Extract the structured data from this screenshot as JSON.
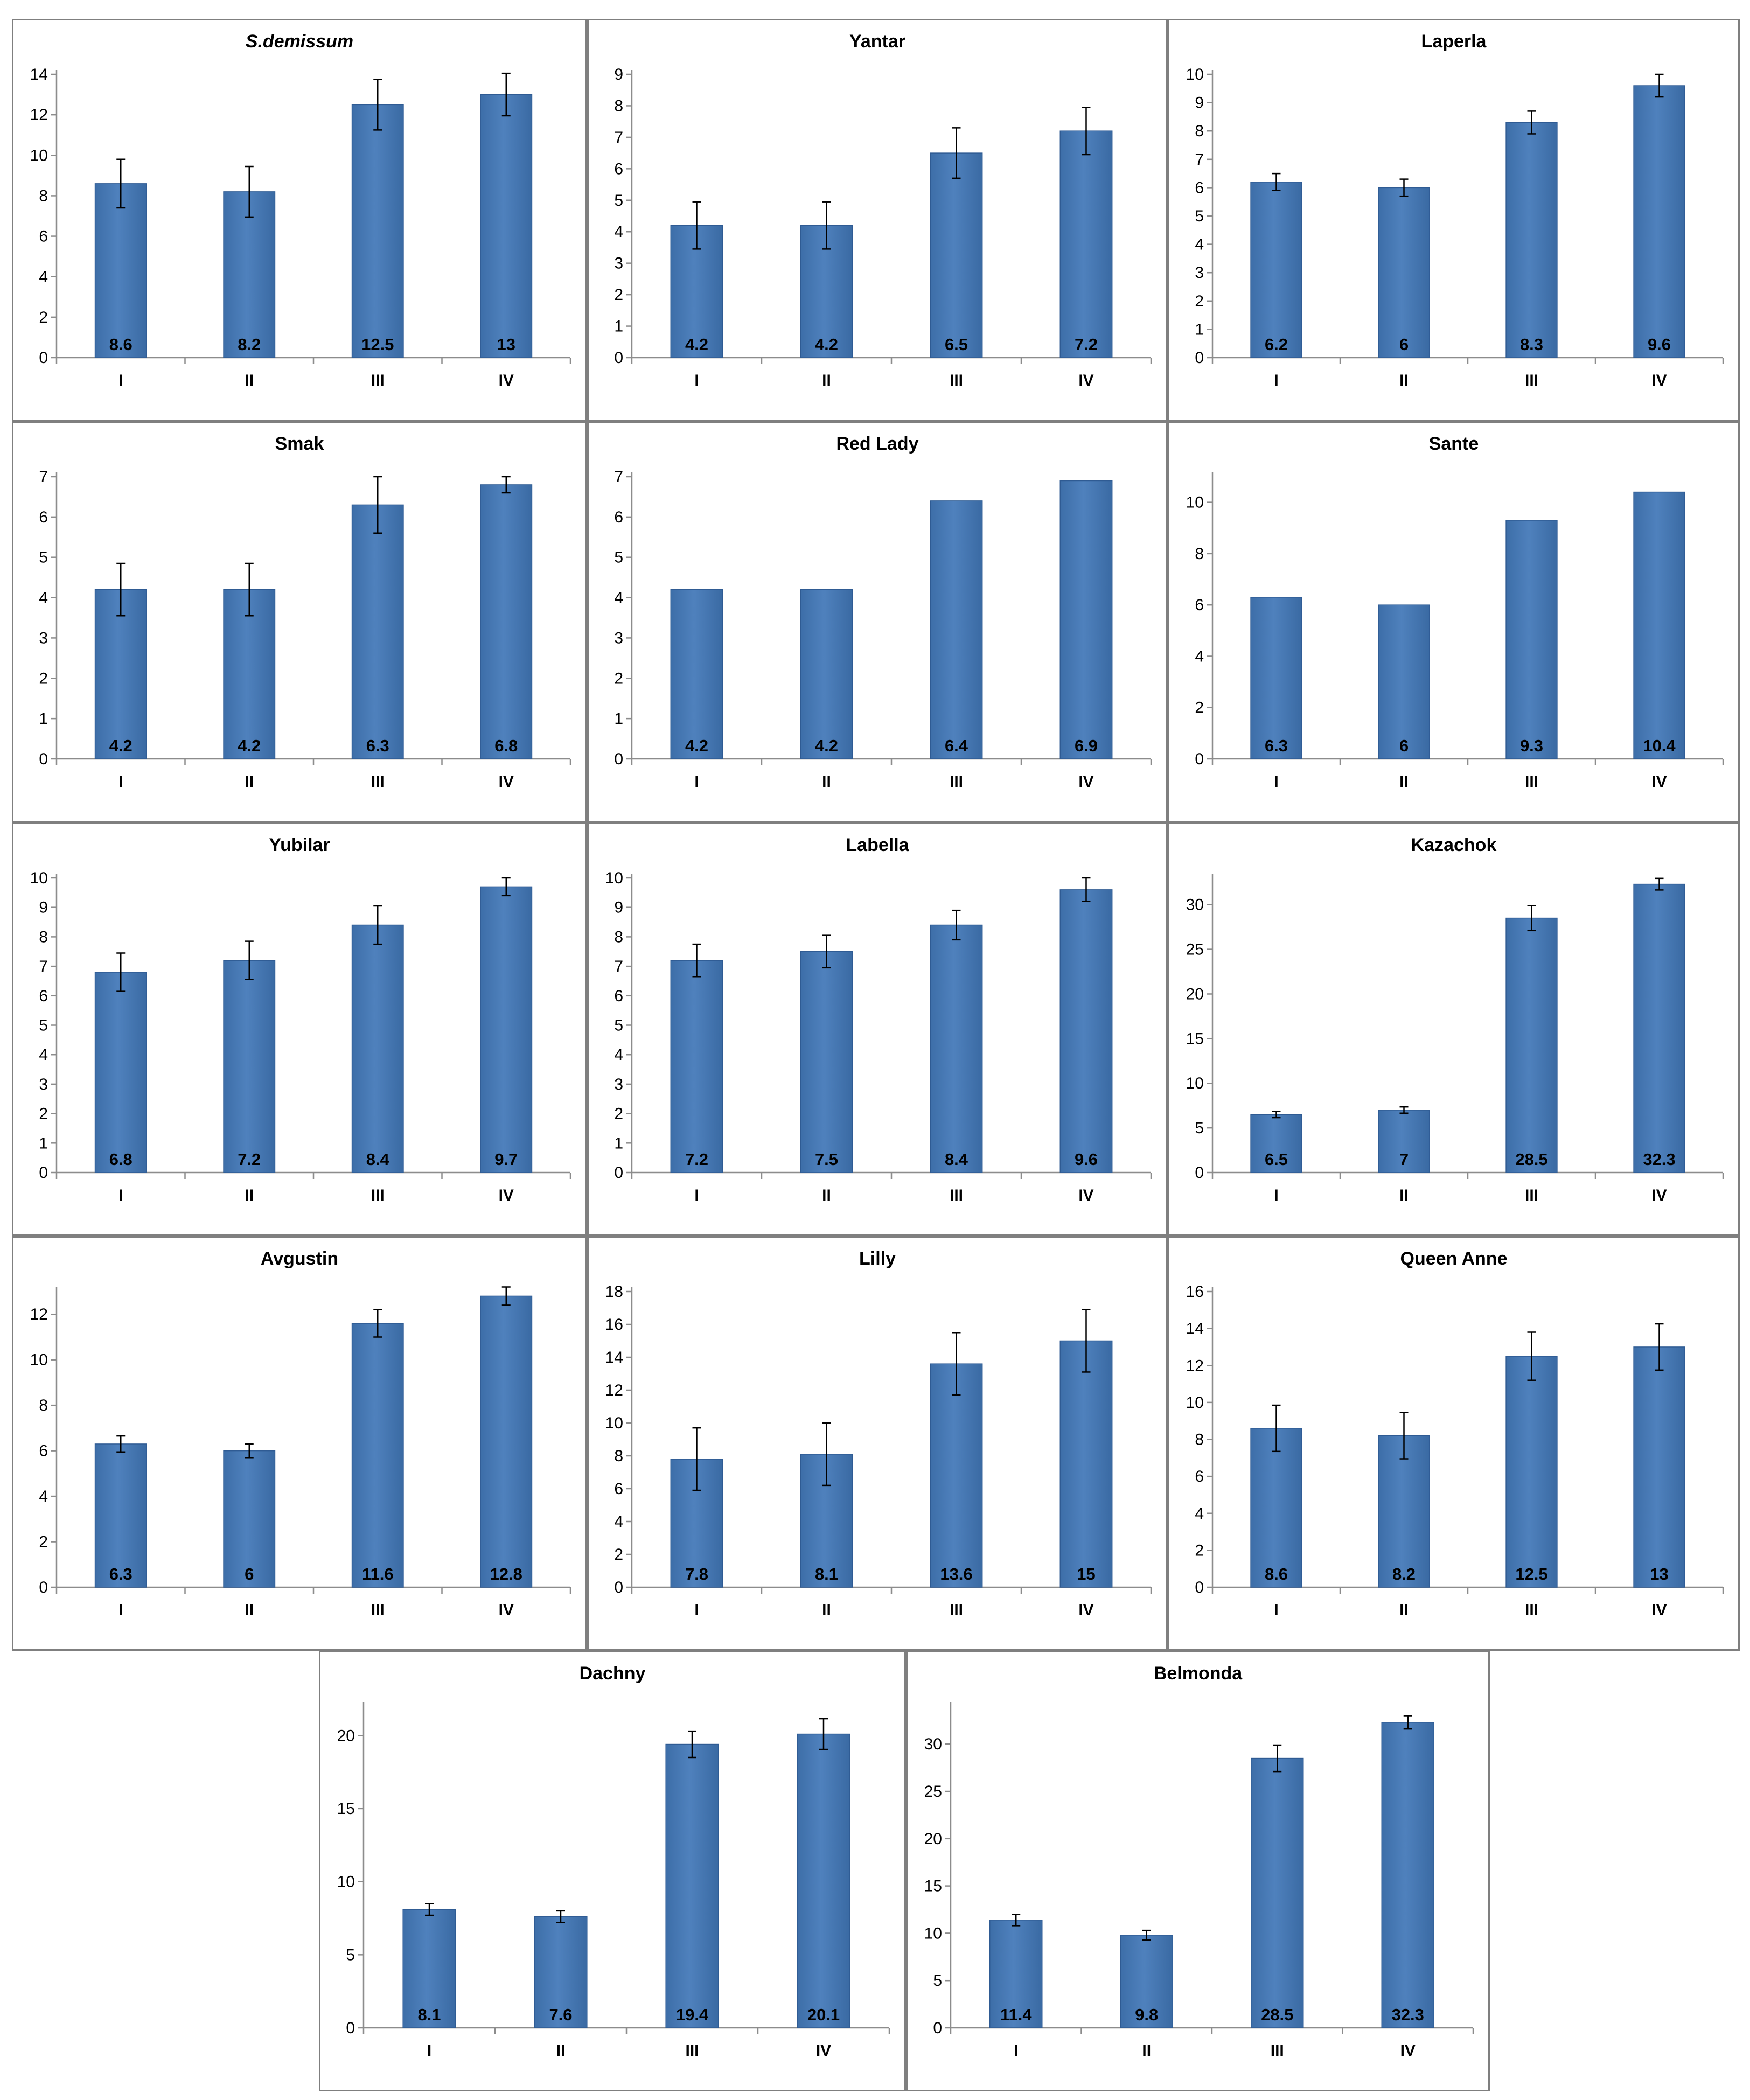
{
  "chart_data": [
    {
      "type": "bar",
      "title": "S.demissum",
      "italic_title": true,
      "categories": [
        "I",
        "II",
        "III",
        "IV"
      ],
      "values": [
        8.6,
        8.2,
        12.5,
        13
      ],
      "labels": [
        "8.6",
        "8.2",
        "12.5",
        "13"
      ],
      "errors": [
        1.2,
        1.25,
        1.25,
        1.05
      ],
      "ylim": [
        0,
        14
      ],
      "yticks": [
        "0",
        "2",
        "4",
        "6",
        "8",
        "10",
        "12",
        "14"
      ],
      "tick_step": 2,
      "color": "#4f81bd"
    },
    {
      "type": "bar",
      "title": "Yantar",
      "categories": [
        "I",
        "II",
        "III",
        "IV"
      ],
      "values": [
        4.2,
        4.2,
        6.5,
        7.2
      ],
      "labels": [
        "4.2",
        "4.2",
        "6.5",
        "7.2"
      ],
      "errors": [
        0.75,
        0.75,
        0.8,
        0.75
      ],
      "ylim": [
        0,
        9
      ],
      "yticks": [
        "0",
        "1",
        "2",
        "3",
        "4",
        "5",
        "6",
        "7",
        "8",
        "9"
      ],
      "tick_step": 1,
      "color": "#4f81bd"
    },
    {
      "type": "bar",
      "title": "Laperla",
      "categories": [
        "I",
        "II",
        "III",
        "IV"
      ],
      "values": [
        6.2,
        6,
        8.3,
        9.6
      ],
      "labels": [
        "6.2",
        "6",
        "8.3",
        "9.6"
      ],
      "errors": [
        0.3,
        0.3,
        0.4,
        0.4
      ],
      "ylim": [
        0,
        10
      ],
      "yticks": [
        "0",
        "1",
        "2",
        "3",
        "4",
        "5",
        "6",
        "7",
        "8",
        "9",
        "10"
      ],
      "tick_step": 1,
      "color": "#4f81bd"
    },
    {
      "type": "bar",
      "title": "Smak",
      "categories": [
        "I",
        "II",
        "III",
        "IV"
      ],
      "values": [
        4.2,
        4.2,
        6.3,
        6.8
      ],
      "labels": [
        "4.2",
        "4.2",
        "6.3",
        "6.8"
      ],
      "errors": [
        0.65,
        0.65,
        0.7,
        0.2
      ],
      "ylim": [
        0,
        7
      ],
      "yticks": [
        "0",
        "1",
        "2",
        "3",
        "4",
        "5",
        "6",
        "7"
      ],
      "tick_step": 1,
      "color": "#4f81bd"
    },
    {
      "type": "bar",
      "title": "Red Lady",
      "categories": [
        "I",
        "II",
        "III",
        "IV"
      ],
      "values": [
        4.2,
        4.2,
        6.4,
        6.9
      ],
      "labels": [
        "4.2",
        "4.2",
        "6.4",
        "6.9"
      ],
      "errors": [
        0,
        0,
        0,
        0
      ],
      "ylim": [
        0,
        7
      ],
      "yticks": [
        "0",
        "1",
        "2",
        "3",
        "4",
        "5",
        "6",
        "7"
      ],
      "tick_step": 1,
      "color": "#4f81bd"
    },
    {
      "type": "bar",
      "title": "Sante",
      "categories": [
        "I",
        "II",
        "III",
        "IV"
      ],
      "values": [
        6.3,
        6,
        9.3,
        10.4
      ],
      "labels": [
        "6.3",
        "6",
        "9.3",
        "10.4"
      ],
      "errors": [
        0,
        0,
        0,
        0
      ],
      "ylim": [
        0,
        11
      ],
      "yticks": [
        "0",
        "2",
        "4",
        "6",
        "8",
        "10"
      ],
      "tick_step": 2,
      "color": "#4f81bd"
    },
    {
      "type": "bar",
      "title": "Yubilar",
      "categories": [
        "I",
        "II",
        "III",
        "IV"
      ],
      "values": [
        6.8,
        7.2,
        8.4,
        9.7
      ],
      "labels": [
        "6.8",
        "7.2",
        "8.4",
        "9.7"
      ],
      "errors": [
        0.65,
        0.65,
        0.65,
        0.3
      ],
      "ylim": [
        0,
        10
      ],
      "yticks": [
        "0",
        "1",
        "2",
        "3",
        "4",
        "5",
        "6",
        "7",
        "8",
        "9",
        "10"
      ],
      "tick_step": 1,
      "color": "#4f81bd"
    },
    {
      "type": "bar",
      "title": "Labella",
      "categories": [
        "I",
        "II",
        "III",
        "IV"
      ],
      "values": [
        7.2,
        7.5,
        8.4,
        9.6
      ],
      "labels": [
        "7.2",
        "7.5",
        "8.4",
        "9.6"
      ],
      "errors": [
        0.55,
        0.55,
        0.5,
        0.4
      ],
      "ylim": [
        0,
        10
      ],
      "yticks": [
        "0",
        "1",
        "2",
        "3",
        "4",
        "5",
        "6",
        "7",
        "8",
        "9",
        "10"
      ],
      "tick_step": 1,
      "color": "#4f81bd"
    },
    {
      "type": "bar",
      "title": "Kazachok",
      "categories": [
        "I",
        "II",
        "III",
        "IV"
      ],
      "values": [
        6.5,
        7,
        28.5,
        32.3
      ],
      "labels": [
        "6.5",
        "7",
        "28.5",
        "32.3"
      ],
      "errors": [
        0.35,
        0.35,
        1.4,
        0.65
      ],
      "ylim": [
        0,
        33
      ],
      "yticks": [
        "0",
        "5",
        "10",
        "15",
        "20",
        "25",
        "30"
      ],
      "tick_step": 5,
      "color": "#4f81bd"
    },
    {
      "type": "bar",
      "title": "Avgustin",
      "categories": [
        "I",
        "II",
        "III",
        "IV"
      ],
      "values": [
        6.3,
        6,
        11.6,
        12.8
      ],
      "labels": [
        "6.3",
        "6",
        "11.6",
        "12.8"
      ],
      "errors": [
        0.35,
        0.3,
        0.6,
        0.4
      ],
      "ylim": [
        0,
        13
      ],
      "yticks": [
        "0",
        "2",
        "4",
        "6",
        "8",
        "10",
        "12"
      ],
      "tick_step": 2,
      "color": "#4f81bd"
    },
    {
      "type": "bar",
      "title": "Lilly",
      "categories": [
        "I",
        "II",
        "III",
        "IV"
      ],
      "values": [
        7.8,
        8.1,
        13.6,
        15
      ],
      "labels": [
        "7.8",
        "8.1",
        "13.6",
        "15"
      ],
      "errors": [
        1.9,
        1.9,
        1.9,
        1.9
      ],
      "ylim": [
        0,
        18
      ],
      "yticks": [
        "0",
        "2",
        "4",
        "6",
        "8",
        "10",
        "12",
        "14",
        "16",
        "18"
      ],
      "tick_step": 2,
      "color": "#4f81bd"
    },
    {
      "type": "bar",
      "title": "Queen Anne",
      "categories": [
        "I",
        "II",
        "III",
        "IV"
      ],
      "values": [
        8.6,
        8.2,
        12.5,
        13
      ],
      "labels": [
        "8.6",
        "8.2",
        "12.5",
        "13"
      ],
      "errors": [
        1.25,
        1.25,
        1.3,
        1.25
      ],
      "ylim": [
        0,
        16
      ],
      "yticks": [
        "0",
        "2",
        "4",
        "6",
        "8",
        "10",
        "12",
        "14",
        "16"
      ],
      "tick_step": 2,
      "color": "#4f81bd"
    },
    {
      "type": "bar",
      "title": "Dachny",
      "categories": [
        "I",
        "II",
        "III",
        "IV"
      ],
      "values": [
        8.1,
        7.6,
        19.4,
        20.1
      ],
      "labels": [
        "8.1",
        "7.6",
        "19.4",
        "20.1"
      ],
      "errors": [
        0.4,
        0.4,
        0.9,
        1.05
      ],
      "ylim": [
        0,
        22
      ],
      "yticks": [
        "0",
        "5",
        "10",
        "15",
        "20"
      ],
      "tick_step": 5,
      "color": "#4f81bd"
    },
    {
      "type": "bar",
      "title": "Belmonda",
      "categories": [
        "I",
        "II",
        "III",
        "IV"
      ],
      "values": [
        11.4,
        9.8,
        28.5,
        32.3
      ],
      "labels": [
        "11.4",
        "9.8",
        "28.5",
        "32.3"
      ],
      "errors": [
        0.6,
        0.5,
        1.4,
        0.7
      ],
      "ylim": [
        0,
        34
      ],
      "yticks": [
        "0",
        "5",
        "10",
        "15",
        "20",
        "25",
        "30"
      ],
      "tick_step": 5,
      "color": "#4f81bd"
    }
  ]
}
